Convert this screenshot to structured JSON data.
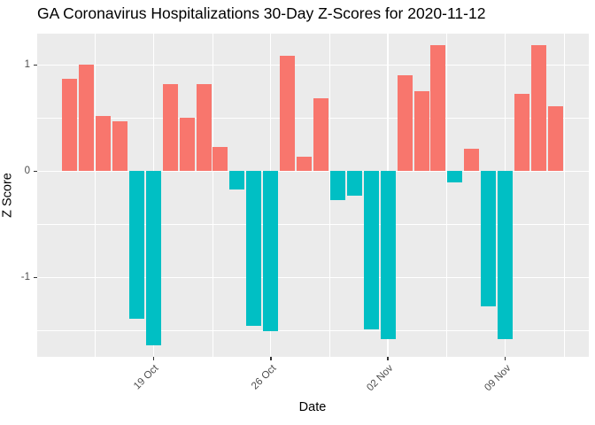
{
  "figure": {
    "title": "GA Coronavirus Hospitalizations 30-Day Z-Scores for 2020-11-12"
  },
  "colors": {
    "positive_bar": "#F8766D",
    "negative_bar": "#00BFC4",
    "panel_background": "#EBEBEB",
    "gridline": "#FFFFFF",
    "axis_tick_text": "#4D4D4D",
    "tick_mark": "#333333",
    "title_text": "#000000"
  },
  "chart_data": {
    "type": "bar",
    "title": "GA Coronavirus Hospitalizations 30-Day Z-Scores for 2020-11-12",
    "xlabel": "Date",
    "ylabel": "Z Score",
    "x": [
      "2020-10-14",
      "2020-10-15",
      "2020-10-16",
      "2020-10-17",
      "2020-10-18",
      "2020-10-19",
      "2020-10-20",
      "2020-10-21",
      "2020-10-22",
      "2020-10-23",
      "2020-10-24",
      "2020-10-25",
      "2020-10-26",
      "2020-10-27",
      "2020-10-28",
      "2020-10-29",
      "2020-10-30",
      "2020-10-31",
      "2020-11-01",
      "2020-11-02",
      "2020-11-03",
      "2020-11-04",
      "2020-11-05",
      "2020-11-06",
      "2020-11-07",
      "2020-11-08",
      "2020-11-09",
      "2020-11-10",
      "2020-11-11",
      "2020-11-12"
    ],
    "values": [
      0.87,
      1.0,
      0.52,
      0.47,
      -1.39,
      -1.64,
      0.82,
      0.5,
      0.82,
      0.23,
      -0.17,
      -1.46,
      -1.51,
      1.09,
      0.14,
      0.69,
      -0.27,
      -0.23,
      -1.49,
      -1.58,
      0.9,
      0.75,
      1.19,
      -0.11,
      0.21,
      -1.27,
      -1.58,
      0.73,
      1.19,
      0.61
    ],
    "color_rule": "positive bars salmon #F8766D, negative bars teal #00BFC4",
    "x_tick_labels": [
      "19 Oct",
      "26 Oct",
      "02 Nov",
      "09 Nov"
    ],
    "x_tick_day_indices": [
      5,
      12,
      19,
      26
    ],
    "x_minor_day_indices": [
      1.5,
      8.5,
      15.5,
      22.5,
      29.5
    ],
    "y_tick_labels": [
      "1",
      "0",
      "-1"
    ],
    "y_tick_values": [
      1,
      0,
      -1
    ],
    "y_minor_values": [
      0.5,
      -0.5,
      -1.5
    ],
    "ylim": [
      -1.75,
      1.29
    ],
    "grid": "white major+minor gridlines on gray panel",
    "legend_position": "none"
  }
}
